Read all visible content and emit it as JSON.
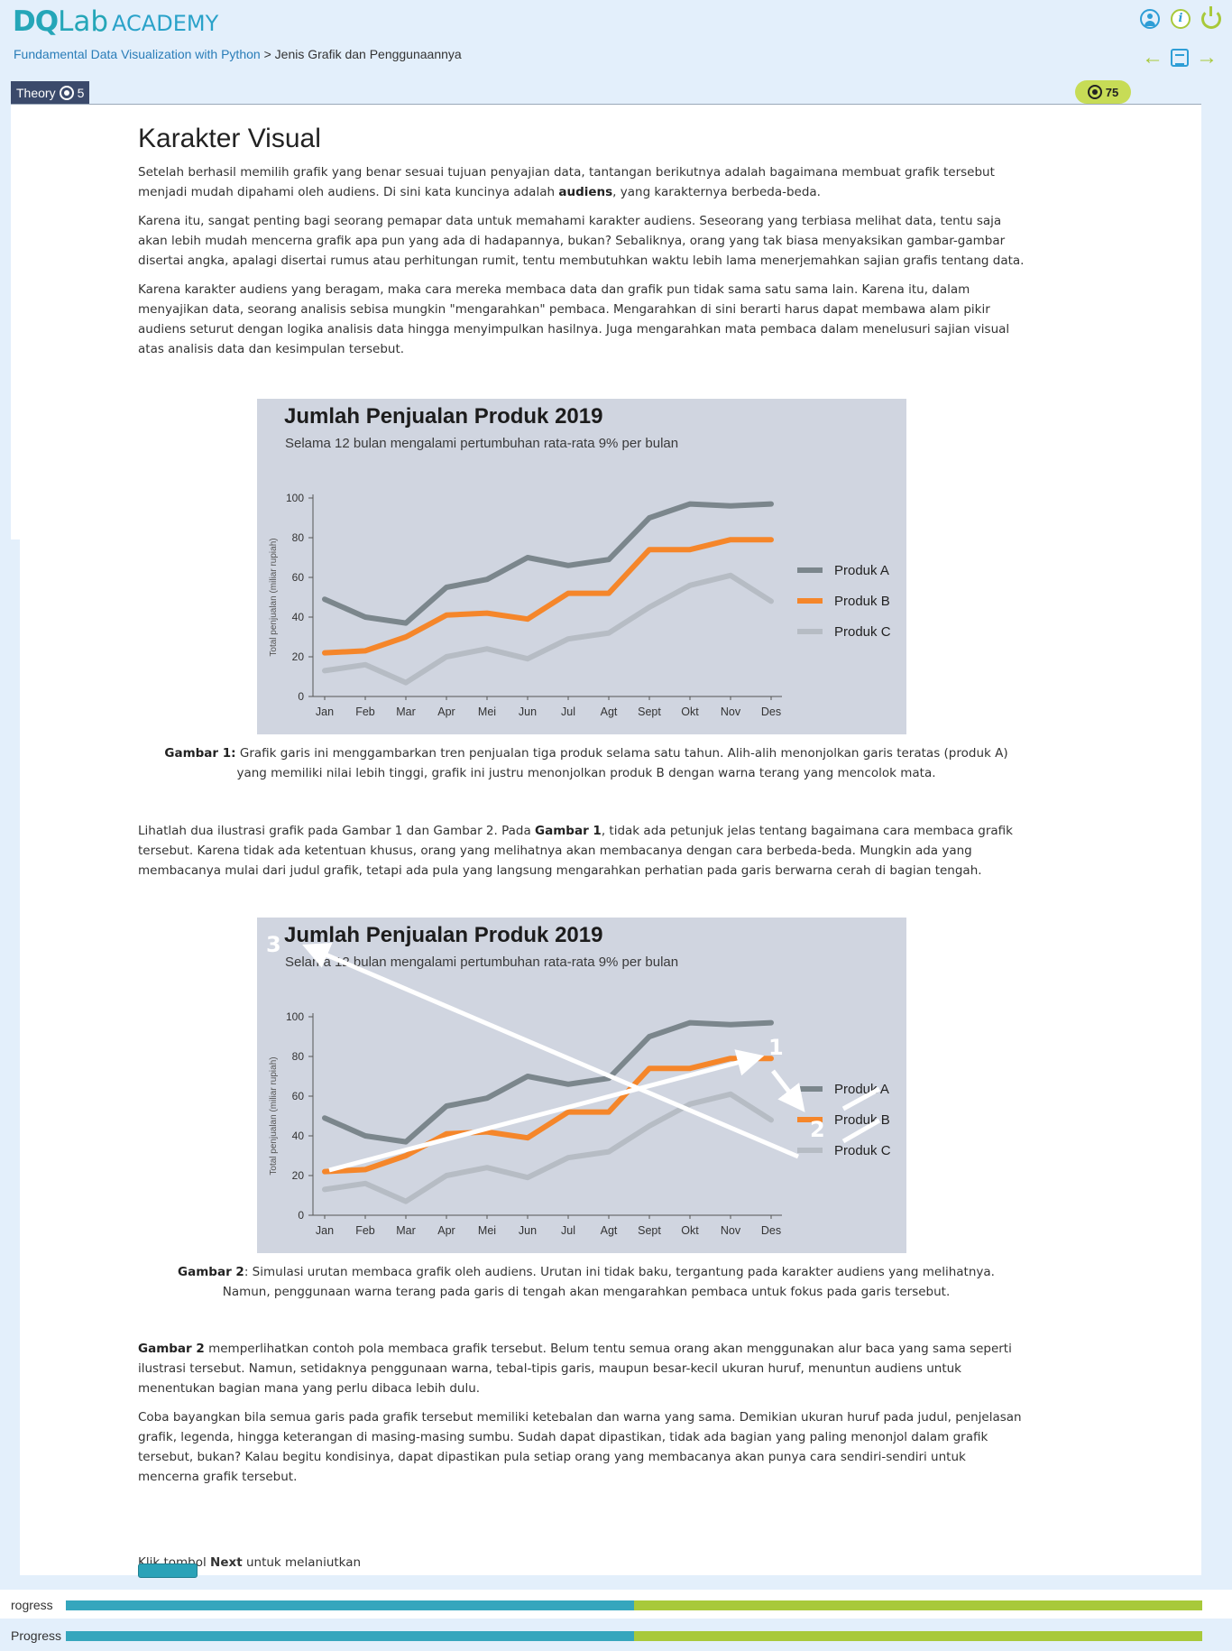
{
  "header": {
    "logo_do": "DQ",
    "logo_lab": "Lab",
    "logo_academy": "ACADEMY",
    "icons": [
      "user-icon",
      "info-icon",
      "power-icon"
    ]
  },
  "breadcrumb": {
    "course": "Fundamental Data Visualization with Python",
    "separator": ">",
    "chapter": "Jenis Grafik dan Penggunaannya"
  },
  "tabs": {
    "theory_label": "Theory",
    "theory_count": "5",
    "score": "75"
  },
  "article": {
    "title": "Karakter Visual",
    "p1_a": "Setelah berhasil memilih grafik yang benar sesuai tujuan penyajian data, tantangan berikutnya adalah bagaimana membuat grafik tersebut menjadi mudah dipahami oleh audiens. Di sini kata kuncinya adalah ",
    "p1_b": "audiens",
    "p1_c": ", yang karakternya berbeda-beda.",
    "p2": "Karena itu, sangat penting bagi seorang pemapar data untuk memahami karakter audiens. Seseorang yang terbiasa melihat data, tentu saja akan lebih mudah mencerna grafik apa pun yang ada di hadapannya, bukan? Sebaliknya, orang yang tak biasa menyaksikan gambar-gambar disertai angka, apalagi disertai rumus atau perhitungan rumit, tentu membutuhkan waktu lebih lama menerjemahkan sajian grafis tentang data.",
    "p3": "Karena karakter audiens yang beragam, maka cara mereka membaca data dan grafik pun tidak sama satu sama lain. Karena itu, dalam menyajikan data, seorang analisis sebisa mungkin \"mengarahkan\" pembaca. Mengarahkan di sini berarti harus dapat membawa alam pikir audiens seturut dengan logika analisis data hingga menyimpulkan hasilnya. Juga mengarahkan mata pembaca dalam menelusuri sajian visual atas analisis data dan kesimpulan tersebut.",
    "caption1_label": "Gambar 1:",
    "caption1_text": " Grafik garis ini menggambarkan tren penjualan tiga produk selama satu tahun. Alih-alih menonjolkan garis teratas (produk A) yang memiliki nilai lebih tinggi, grafik ini justru menonjolkan produk B dengan warna terang yang mencolok mata.",
    "p4_a": "Lihatlah dua ilustrasi grafik pada Gambar 1 dan Gambar 2. Pada ",
    "p4_b": "Gambar 1",
    "p4_c": ", tidak ada petunjuk jelas tentang bagaimana cara membaca grafik tersebut. Karena tidak ada ketentuan khusus, orang yang melihatnya akan membacanya dengan cara berbeda-beda. Mungkin ada yang membacanya mulai dari judul grafik, tetapi ada pula yang langsung mengarahkan perhatian pada garis berwarna cerah di bagian tengah.",
    "caption2_label": "Gambar 2",
    "caption2_text": ": Simulasi urutan membaca grafik oleh audiens. Urutan ini tidak baku, tergantung pada karakter audiens yang melihatnya. Namun, penggunaan warna terang pada garis di tengah akan mengarahkan pembaca untuk fokus pada garis tersebut.",
    "p5_a": "Gambar 2",
    "p5_b": " memperlihatkan contoh pola membaca grafik tersebut. Belum tentu semua orang akan menggunakan alur baca yang sama seperti ilustrasi tersebut. Namun, setidaknya penggunaan warna, tebal-tipis garis, maupun besar-kecil ukuran huruf, menuntun audiens untuk menentukan bagian mana yang perlu dibaca lebih dulu.",
    "p6": "Coba bayangkan bila semua garis pada grafik tersebut memiliki ketebalan dan warna yang sama. Demikian ukuran huruf pada judul, penjelasan grafik, legenda, hingga keterangan di masing-masing sumbu. Sudah dapat dipastikan, tidak ada bagian yang paling menonjol dalam grafik tersebut, bukan? Kalau begitu kondisinya, dapat dipastikan pula setiap orang yang membacanya akan punya cara sendiri-sendiri untuk mencerna grafik tersebut.",
    "next_a": "Klik tombol ",
    "next_b": "Next",
    "next_c": " untuk melanjutkan"
  },
  "chart_data": [
    {
      "type": "line",
      "title": "Jumlah Penjualan Produk 2019",
      "subtitle": "Selama 12 bulan mengalami pertumbuhan rata-rata 9% per bulan",
      "xlabel": "",
      "ylabel": "Total penjualan (miliar rupiah)",
      "ylim": [
        0,
        100
      ],
      "yticks": [
        0,
        20,
        40,
        60,
        80,
        100
      ],
      "categories": [
        "Jan",
        "Feb",
        "Mar",
        "Apr",
        "Mei",
        "Jun",
        "Jul",
        "Agt",
        "Sept",
        "Okt",
        "Nov",
        "Des"
      ],
      "legend_position": "right",
      "series": [
        {
          "name": "Produk A",
          "color": "#7b868c",
          "values": [
            49,
            40,
            37,
            55,
            59,
            70,
            66,
            69,
            90,
            97,
            96,
            97
          ]
        },
        {
          "name": "Produk B",
          "color": "#f5862a",
          "values": [
            22,
            23,
            30,
            41,
            42,
            39,
            52,
            52,
            74,
            74,
            79,
            79
          ]
        },
        {
          "name": "Produk C",
          "color": "#b6bcc4",
          "values": [
            13,
            16,
            7,
            20,
            24,
            19,
            29,
            32,
            45,
            56,
            61,
            48
          ]
        }
      ]
    },
    {
      "type": "line",
      "title": "Jumlah Penjualan Produk 2019",
      "subtitle": "Selama 12 bulan mengalami pertumbuhan rata-rata 9% per bulan",
      "xlabel": "",
      "ylabel": "Total penjualan (miliar rupiah)",
      "ylim": [
        0,
        100
      ],
      "yticks": [
        0,
        20,
        40,
        60,
        80,
        100
      ],
      "categories": [
        "Jan",
        "Feb",
        "Mar",
        "Apr",
        "Mei",
        "Jun",
        "Jul",
        "Agt",
        "Sept",
        "Okt",
        "Nov",
        "Des"
      ],
      "legend_position": "right",
      "annotations": [
        "1",
        "2",
        "3"
      ],
      "series": [
        {
          "name": "Produk A",
          "color": "#7b868c",
          "values": [
            49,
            40,
            37,
            55,
            59,
            70,
            66,
            69,
            90,
            97,
            96,
            97
          ]
        },
        {
          "name": "Produk B",
          "color": "#f5862a",
          "values": [
            22,
            23,
            30,
            41,
            42,
            39,
            52,
            52,
            74,
            74,
            79,
            79
          ]
        },
        {
          "name": "Produk C",
          "color": "#b6bcc4",
          "values": [
            13,
            16,
            7,
            20,
            24,
            19,
            29,
            32,
            45,
            56,
            61,
            48
          ]
        }
      ]
    }
  ],
  "progress": {
    "label_1": "rogress",
    "label_2": "Progress",
    "fraction": 0.5
  },
  "colors": {
    "accent_teal": "#35a6bd",
    "accent_green": "#a8c93a",
    "tab_dark": "#3b4a6b"
  }
}
